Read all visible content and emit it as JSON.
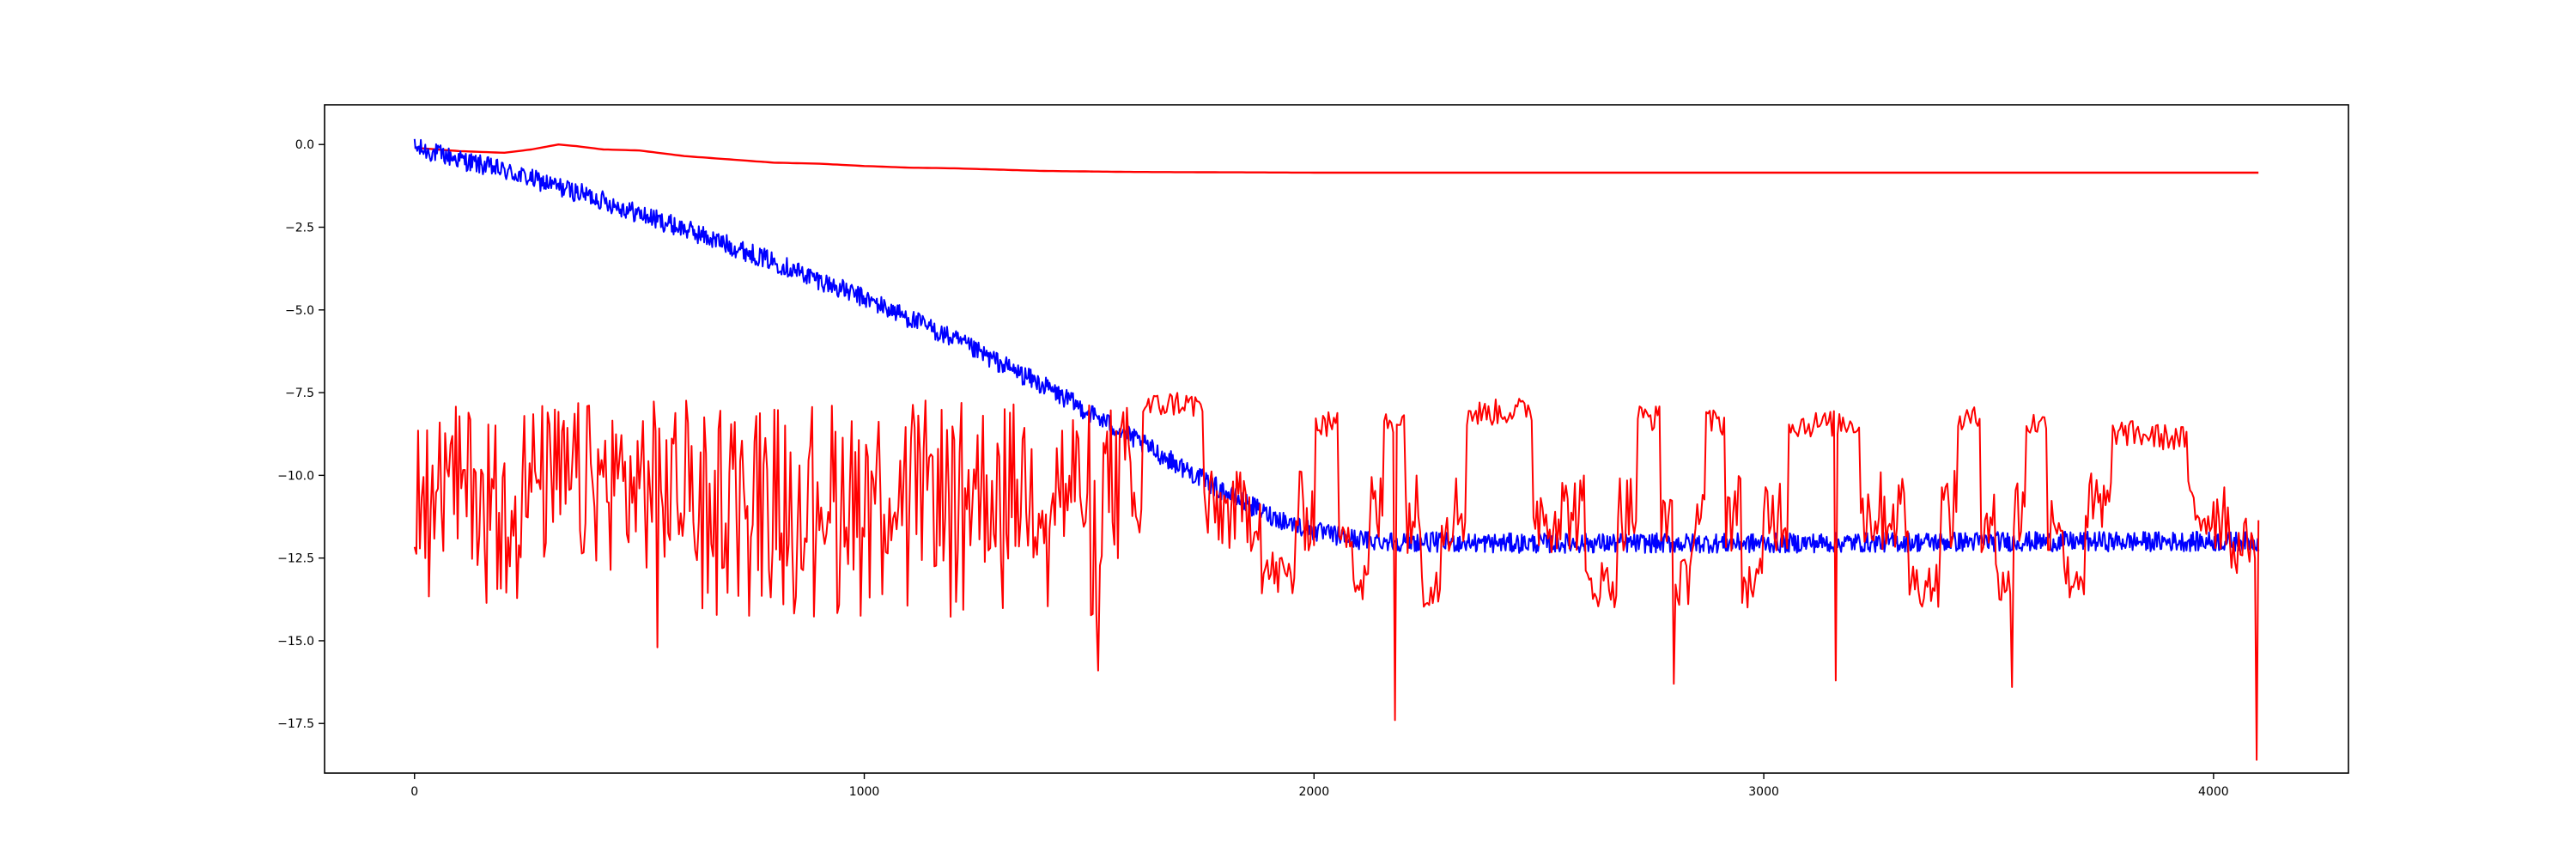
{
  "chart_data": {
    "type": "line",
    "title": "",
    "xlabel": "",
    "ylabel": "",
    "xlim": [
      -200,
      4300
    ],
    "ylim": [
      -19.0,
      1.2
    ],
    "x_ticks": [
      0,
      1000,
      2000,
      3000,
      4000
    ],
    "y_ticks": [
      0.0,
      -2.5,
      -5.0,
      -7.5,
      -10.0,
      -12.5,
      -15.0,
      -17.5
    ],
    "x_tick_labels": [
      "0",
      "1000",
      "2000",
      "3000",
      "4000"
    ],
    "y_tick_labels": [
      "0.0",
      "−2.5",
      "−5.0",
      "−7.5",
      "−10.0",
      "−12.5",
      "−15.0",
      "−17.5"
    ],
    "grid": false,
    "legend": false,
    "series": [
      {
        "color": "#ff0000",
        "style": "smooth",
        "points": [
          [
            0,
            -0.1
          ],
          [
            100,
            -0.2
          ],
          [
            200,
            -0.25
          ],
          [
            260,
            -0.15
          ],
          [
            320,
            0.0
          ],
          [
            360,
            -0.05
          ],
          [
            420,
            -0.15
          ],
          [
            500,
            -0.18
          ],
          [
            600,
            -0.35
          ],
          [
            700,
            -0.45
          ],
          [
            800,
            -0.55
          ],
          [
            900,
            -0.58
          ],
          [
            1000,
            -0.65
          ],
          [
            1100,
            -0.7
          ],
          [
            1200,
            -0.72
          ],
          [
            1300,
            -0.76
          ],
          [
            1400,
            -0.8
          ],
          [
            1600,
            -0.83
          ],
          [
            2000,
            -0.85
          ],
          [
            2500,
            -0.85
          ],
          [
            3000,
            -0.85
          ],
          [
            3500,
            -0.85
          ],
          [
            4100,
            -0.85
          ]
        ]
      },
      {
        "color": "#0000ff",
        "style": "noisy-trend",
        "points": [
          [
            0,
            -0.1
          ],
          [
            100,
            -0.45
          ],
          [
            200,
            -0.8
          ],
          [
            300,
            -1.2
          ],
          [
            400,
            -1.6
          ],
          [
            500,
            -2.1
          ],
          [
            600,
            -2.55
          ],
          [
            700,
            -3.05
          ],
          [
            800,
            -3.55
          ],
          [
            900,
            -4.1
          ],
          [
            1000,
            -4.65
          ],
          [
            1100,
            -5.25
          ],
          [
            1200,
            -5.9
          ],
          [
            1300,
            -6.6
          ],
          [
            1400,
            -7.3
          ],
          [
            1500,
            -8.1
          ],
          [
            1600,
            -8.9
          ],
          [
            1700,
            -9.7
          ],
          [
            1800,
            -10.5
          ],
          [
            1900,
            -11.2
          ],
          [
            2000,
            -11.7
          ],
          [
            2100,
            -11.95
          ],
          [
            2200,
            -12.0
          ],
          [
            2400,
            -12.05
          ],
          [
            3000,
            -12.05
          ],
          [
            3500,
            -12.0
          ],
          [
            4100,
            -12.0
          ]
        ],
        "noise_amplitude": 0.3
      },
      {
        "color": "#ff0000",
        "style": "oscillating-band",
        "band": [
          [
            0,
            -8.0,
            -13.0
          ],
          [
            500,
            -8.0,
            -13.5
          ],
          [
            1000,
            -8.0,
            -13.5
          ],
          [
            1500,
            -8.2,
            -13.5
          ],
          [
            1700,
            -7.8,
            -13.0
          ],
          [
            2000,
            -8.5,
            -14.0
          ],
          [
            2500,
            -8.0,
            -14.0
          ],
          [
            3000,
            -8.5,
            -14.0
          ],
          [
            3500,
            -8.3,
            -14.0
          ],
          [
            4000,
            -9.0,
            -13.5
          ],
          [
            4100,
            -9.5,
            -12.5
          ]
        ],
        "center": -10.3,
        "dense_until_x": 1600,
        "spikes": [
          [
            540,
            -15.2
          ],
          [
            1520,
            -15.9
          ],
          [
            2180,
            -17.4
          ],
          [
            2800,
            -16.3
          ],
          [
            3160,
            -16.2
          ],
          [
            3550,
            -16.4
          ],
          [
            4095,
            -18.6
          ]
        ]
      }
    ]
  }
}
